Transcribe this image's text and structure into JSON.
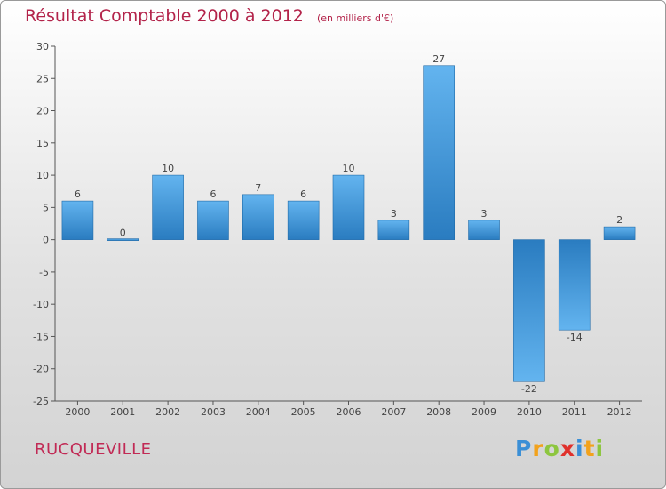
{
  "header": {
    "title": "Résultat Comptable 2000 à 2012",
    "unit": "(en milliers d'€)"
  },
  "commune": "RUCQUEVILLE",
  "logo": {
    "text": "Proxiti",
    "letters": [
      {
        "char": "P",
        "color": "#3b8fd6"
      },
      {
        "char": "r",
        "color": "#f2a21c"
      },
      {
        "char": "o",
        "color": "#8dc63f"
      },
      {
        "char": "x",
        "color": "#e0312c"
      },
      {
        "char": "i",
        "color": "#3b8fd6"
      },
      {
        "char": "t",
        "color": "#f2a21c"
      },
      {
        "char": "i",
        "color": "#8dc63f"
      }
    ]
  },
  "chart_data": {
    "type": "bar",
    "title": "Résultat Comptable 2000 à 2012",
    "subtitle": "(en milliers d'€)",
    "xlabel": "",
    "ylabel": "",
    "categories": [
      "2000",
      "2001",
      "2002",
      "2003",
      "2004",
      "2005",
      "2006",
      "2007",
      "2008",
      "2009",
      "2010",
      "2011",
      "2012"
    ],
    "values": [
      6,
      0,
      10,
      6,
      7,
      6,
      10,
      3,
      27,
      3,
      -22,
      -14,
      2
    ],
    "ylim": [
      -25,
      30
    ],
    "yticks": [
      30,
      25,
      20,
      15,
      10,
      5,
      0,
      -5,
      -10,
      -15,
      -20,
      -25
    ],
    "grid": false,
    "colors": {
      "bar_light": "#63b4ef",
      "bar_dark": "#2a7cc0",
      "axis": "#555555",
      "text": "#444444"
    }
  }
}
